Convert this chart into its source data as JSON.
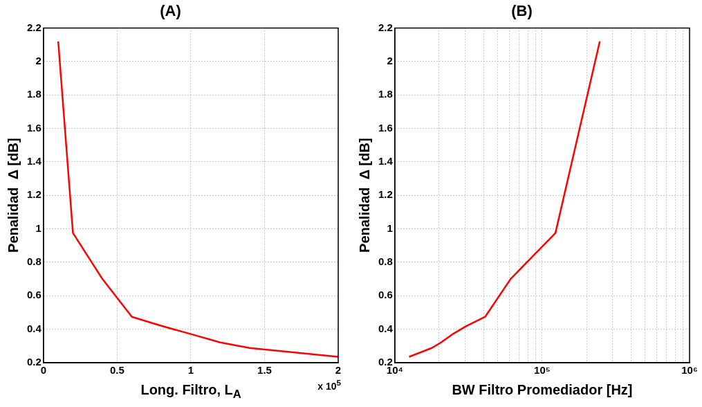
{
  "chart_data": [
    {
      "type": "line",
      "title": "(A)",
      "xlabel": "Long. Filtro, L$_{A}$",
      "ylabel": "Penalidad  Δ [dB]",
      "annotations": [
        "x 10$^{5}$"
      ],
      "x": [
        0.1,
        0.2,
        0.4,
        0.6,
        0.8,
        1.0,
        1.2,
        1.4,
        2.0
      ],
      "series": [
        {
          "color": "#ff0000",
          "values": [
            2.12,
            0.975,
            0.7,
            0.474,
            0.42,
            0.371,
            0.321,
            0.288,
            0.235
          ]
        }
      ],
      "xlim": [
        0,
        2
      ],
      "xticks": [
        0,
        0.5,
        1,
        1.5,
        2
      ],
      "ylim": [
        0.2,
        2.2
      ],
      "yticks": [
        0.2,
        0.4,
        0.6,
        0.8,
        1,
        1.2,
        1.4,
        1.6,
        1.8,
        2,
        2.2
      ],
      "grid": true,
      "marker": "none",
      "line_style": "solid"
    },
    {
      "type": "line",
      "title": "(B)",
      "xlabel": "BW Filtro Promediador [Hz]",
      "ylabel": "Penalidad  Δ [dB]",
      "log": "x",
      "x": [
        12500,
        17800,
        20500,
        24600,
        30700,
        41000,
        61000,
        123000,
        246000
      ],
      "series": [
        {
          "color": "#ff0000",
          "values": [
            0.235,
            0.288,
            0.32,
            0.37,
            0.42,
            0.474,
            0.7,
            0.975,
            2.12
          ]
        }
      ],
      "xlim": [
        10000,
        1000000
      ],
      "xticks": [
        {
          "value": 10000,
          "label": "10⁴"
        },
        {
          "value": 20000,
          "label": null
        },
        {
          "value": 30000,
          "label": null
        },
        {
          "value": 40000,
          "label": null
        },
        {
          "value": 50000,
          "label": null
        },
        {
          "value": 60000,
          "label": null
        },
        {
          "value": 70000,
          "label": null
        },
        {
          "value": 80000,
          "label": null
        },
        {
          "value": 90000,
          "label": null
        },
        {
          "value": 100000,
          "label": "10⁵"
        },
        {
          "value": 200000,
          "label": null
        },
        {
          "value": 300000,
          "label": null
        },
        {
          "value": 400000,
          "label": null
        },
        {
          "value": 500000,
          "label": null
        },
        {
          "value": 600000,
          "label": null
        },
        {
          "value": 700000,
          "label": null
        },
        {
          "value": 800000,
          "label": null
        },
        {
          "value": 900000,
          "label": null
        },
        {
          "value": 1000000,
          "label": "10⁶"
        }
      ],
      "ylim": [
        0.2,
        2.2
      ],
      "yticks": [
        0.2,
        0.4,
        0.6,
        0.8,
        1,
        1.2,
        1.4,
        1.6,
        1.8,
        2,
        2.2
      ],
      "grid": true,
      "marker": "none",
      "line_style": "solid"
    }
  ]
}
